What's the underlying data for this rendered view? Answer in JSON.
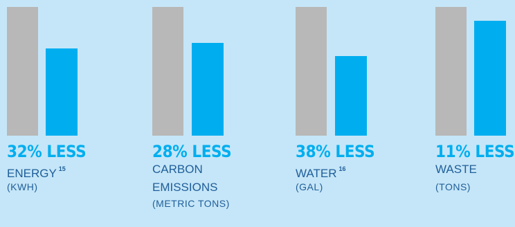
{
  "chart_data": [
    {
      "type": "bar",
      "categories": [
        "",
        ""
      ],
      "values": [
        100,
        68
      ],
      "ylim": [
        0,
        100
      ],
      "headline": "32% LESS",
      "label": "ENERGY",
      "footnote": "15",
      "unit": "(KWH)"
    },
    {
      "type": "bar",
      "categories": [
        "",
        ""
      ],
      "values": [
        100,
        72
      ],
      "ylim": [
        0,
        100
      ],
      "headline": "28% LESS",
      "label": "CARBON EMISSIONS",
      "label_line1": "CARBON",
      "label_line2": "EMISSIONS",
      "footnote": "",
      "unit": "(METRIC TONS)"
    },
    {
      "type": "bar",
      "categories": [
        "",
        ""
      ],
      "values": [
        100,
        62
      ],
      "ylim": [
        0,
        100
      ],
      "headline": "38% LESS",
      "label": "WATER",
      "footnote": "16",
      "unit": "(GAL)"
    },
    {
      "type": "bar",
      "categories": [
        "",
        ""
      ],
      "values": [
        100,
        89
      ],
      "ylim": [
        0,
        100
      ],
      "headline": "11% LESS",
      "label": "WASTE",
      "footnote": "",
      "unit": "(TONS)"
    }
  ],
  "colors": {
    "baseline": "#b8b8b8",
    "reduced": "#00aeef",
    "headline": "#00aeef",
    "label": "#1f5e99",
    "background": "#c5e6f8"
  }
}
